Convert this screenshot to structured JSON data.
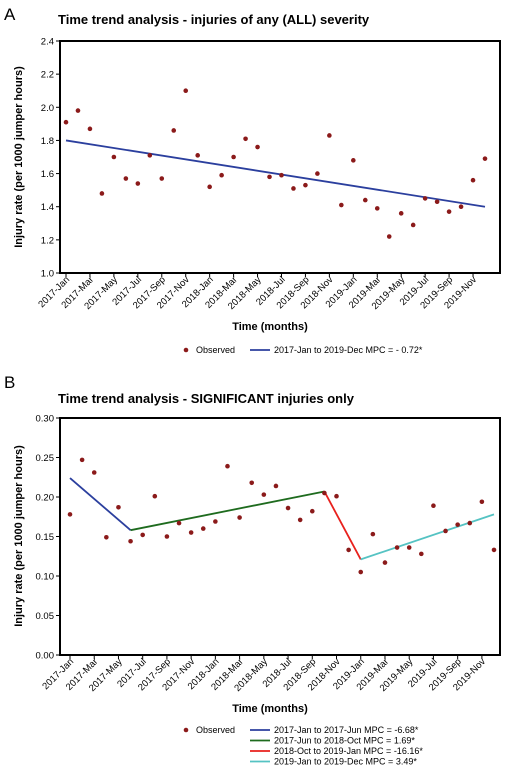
{
  "chart_data": [
    {
      "panel": "A",
      "type": "scatter",
      "title": "Time trend analysis - injuries of any (ALL) severity",
      "xlabel": "Time (months)",
      "ylabel": "Injury rate (per 1000 jumper hours)",
      "ylim": [
        1.0,
        2.4
      ],
      "yticks": [
        "1.0",
        "1.2",
        "1.4",
        "1.6",
        "1.8",
        "2.0",
        "2.2",
        "2.4"
      ],
      "xtick_labels": [
        "2017-Jan",
        "2017-Mar",
        "2017-May",
        "2017-Jul",
        "2017-Sep",
        "2017-Nov",
        "2018-Jan",
        "2018-Mar",
        "2018-May",
        "2018-Jul",
        "2018-Sep",
        "2018-Nov",
        "2019-Jan",
        "2019-Mar",
        "2019-May",
        "2019-Jul",
        "2019-Sep",
        "2019-Nov"
      ],
      "series": [
        {
          "name": "Observed",
          "color": "#8b1a1a",
          "values": [
            1.91,
            1.98,
            1.87,
            1.48,
            1.7,
            1.57,
            1.54,
            1.71,
            1.57,
            1.86,
            2.1,
            1.71,
            1.52,
            1.59,
            1.7,
            1.81,
            1.76,
            1.58,
            1.59,
            1.51,
            1.53,
            1.6,
            1.83,
            1.41,
            1.68,
            1.44,
            1.39,
            1.22,
            1.36,
            1.29,
            1.45,
            1.43,
            1.37,
            1.4,
            1.56,
            1.69
          ]
        }
      ],
      "fits": [
        {
          "name": "2017-Jan to 2019-Dec MPC = - 0.72*",
          "color": "#2b3f9e",
          "start": 1,
          "end": 36,
          "y_start": 1.8,
          "y_end": 1.4
        }
      ]
    },
    {
      "panel": "B",
      "type": "scatter",
      "title": "Time trend analysis - SIGNIFICANT injuries only",
      "xlabel": "Time (months)",
      "ylabel": "Injury rate (per 1000 jumper hours)",
      "ylim": [
        0.0,
        0.3
      ],
      "yticks": [
        "0.00",
        "0.05",
        "0.10",
        "0.15",
        "0.20",
        "0.25",
        "0.30"
      ],
      "xtick_labels": [
        "2017-Jan",
        "2017-Mar",
        "2017-May",
        "2017-Jul",
        "2017-Sep",
        "2017-Nov",
        "2018-Jan",
        "2018-Mar",
        "2018-May",
        "2018-Jul",
        "2018-Sep",
        "2018-Nov",
        "2019-Jan",
        "2019-Mar",
        "2019-May",
        "2019-Jul",
        "2019-Sep",
        "2019-Nov"
      ],
      "series": [
        {
          "name": "Observed",
          "color": "#8b1a1a",
          "values": [
            0.178,
            0.247,
            0.231,
            0.149,
            0.187,
            0.144,
            0.152,
            0.201,
            0.15,
            0.167,
            0.155,
            0.16,
            0.169,
            0.239,
            0.174,
            0.218,
            0.203,
            0.214,
            0.186,
            0.171,
            0.182,
            0.205,
            0.201,
            0.133,
            0.105,
            0.153,
            0.117,
            0.136,
            0.136,
            0.128,
            0.189,
            0.157,
            0.165,
            0.167,
            0.194,
            0.133
          ]
        }
      ],
      "fits": [
        {
          "name": "2017-Jan to 2017-Jun MPC = -6.68*",
          "color": "#2b3f9e",
          "start": 1,
          "end": 6,
          "y_start": 0.224,
          "y_end": 0.158
        },
        {
          "name": "2017-Jun to 2018-Oct MPC =  1.69*",
          "color": "#1e6b1e",
          "start": 6,
          "end": 22,
          "y_start": 0.158,
          "y_end": 0.207
        },
        {
          "name": "2018-Oct to 2019-Jan MPC = -16.16*",
          "color": "#e8211d",
          "start": 22,
          "end": 25,
          "y_start": 0.207,
          "y_end": 0.121
        },
        {
          "name": "2019-Jan to 2019-Dec MPC =  3.49*",
          "color": "#55c3c3",
          "start": 25,
          "end": 36,
          "y_start": 0.121,
          "y_end": 0.178
        }
      ]
    }
  ]
}
